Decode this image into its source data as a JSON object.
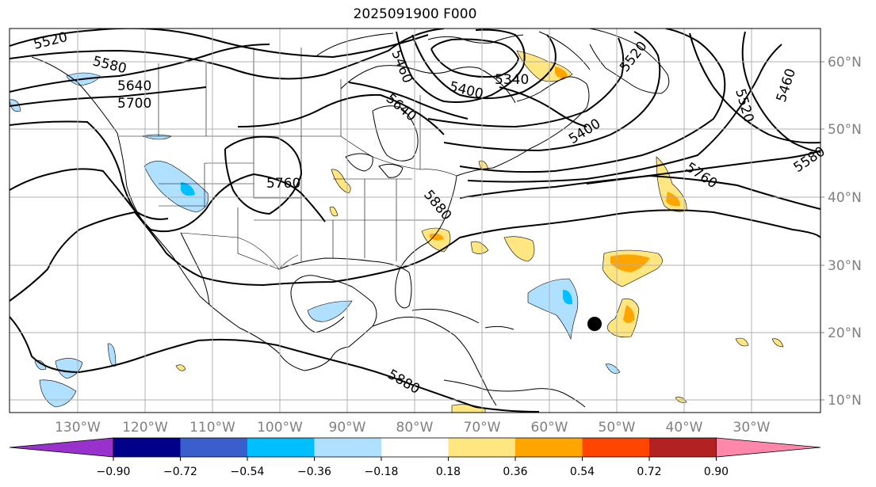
{
  "title": "2025091900 F000",
  "map": {
    "lon_min": -140,
    "lon_max": -19,
    "lat_min": 8,
    "lat_max": 65,
    "grid": true,
    "lon_labels": [
      "130°W",
      "120°W",
      "110°W",
      "100°W",
      "90°W",
      "80°W",
      "70°W",
      "60°W",
      "50°W",
      "40°W",
      "30°W"
    ],
    "lon_values": [
      -130,
      -120,
      -110,
      -100,
      -90,
      -80,
      -70,
      -60,
      -50,
      -40,
      -30
    ],
    "lat_labels": [
      "10°N",
      "20°N",
      "30°N",
      "40°N",
      "50°N",
      "60°N"
    ],
    "lat_values": [
      10,
      20,
      30,
      40,
      50,
      60
    ],
    "contour_labels": [
      "5520",
      "5580",
      "5640",
      "5700",
      "5760",
      "5460",
      "5400",
      "5340",
      "5640",
      "5880",
      "5880",
      "5400",
      "5520",
      "5760",
      "5580",
      "5520",
      "5460"
    ],
    "storm_marker": {
      "lon": -54,
      "lat": 21.3,
      "symbol": "circle"
    }
  },
  "colorbar": {
    "tick_labels": [
      "−0.90",
      "−0.72",
      "−0.54",
      "−0.36",
      "−0.18",
      "0.18",
      "0.36",
      "0.54",
      "0.72",
      "0.90"
    ],
    "colors": [
      "#9932cc",
      "#00008b",
      "#3a5fcd",
      "#00bfff",
      "#b0e0ff",
      "#ffffff",
      "#ffe680",
      "#ffa500",
      "#ff4500",
      "#b22222",
      "#ff88aa"
    ],
    "extend": "both"
  },
  "colors": {
    "contour": "#000000",
    "coast": "#000000",
    "grid": "#b0b0b0"
  }
}
